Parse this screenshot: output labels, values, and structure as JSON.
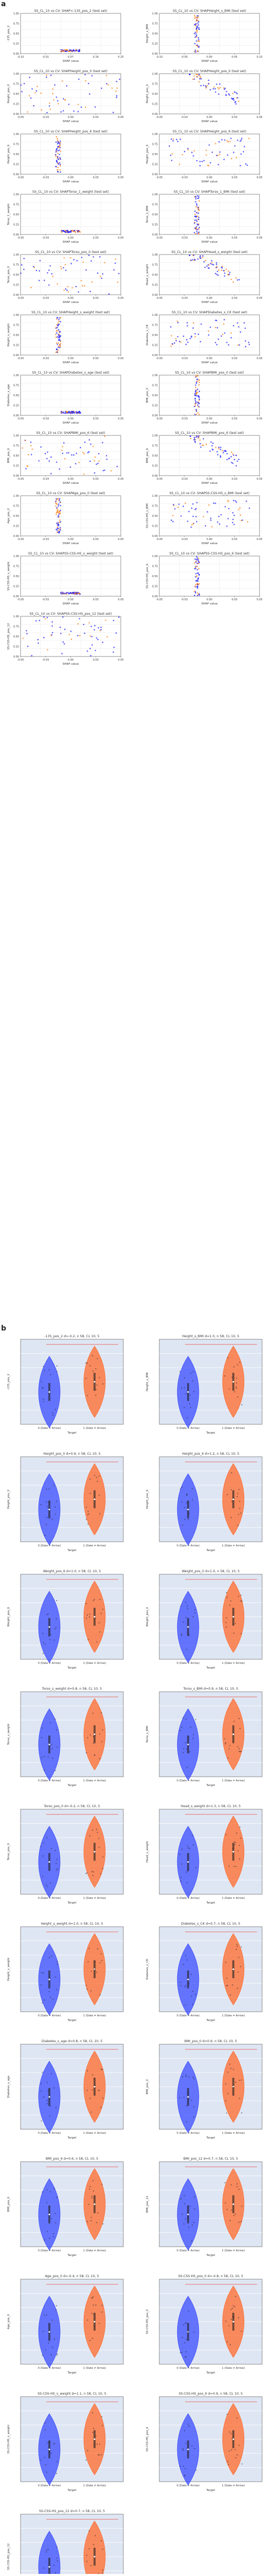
{
  "figure": {
    "panel_a_label": "a",
    "panel_b_label": "b"
  },
  "colors": {
    "dead_point": "#1f1fff",
    "alive_point": "#ff7f0e",
    "violin_blue": "#3b4cff",
    "violin_orange": "#ff6a2b",
    "violin_bg": "#dfe6f3",
    "sig_line": "#e8453c",
    "grid": "#e6e6e6"
  },
  "chart_data": [
    {
      "panel": "a",
      "type": "scatter",
      "grid": true,
      "title_template": "SS_CL_10 vs CV: SHAP<feature> (test set)",
      "xlabel": "SHAP value",
      "subplots": [
        {
          "title": "SS_CL_10 vs CV: SHAP<-135_pos_2 (test set)",
          "ylabel": "-135_pos_2",
          "xlim": [
            -0.1,
            0.25
          ],
          "ylim": [
            0,
            1
          ]
        },
        {
          "title": "SS_CL_10 vs CV: SHAPHeight_s_BMI (test set)",
          "ylabel": "Height_s_BMI",
          "xlim": [
            -0.1,
            0.1
          ],
          "ylim": [
            0,
            1
          ]
        },
        {
          "title": "SS_CL_10 vs CV: SHAPHeight_pos_0 (test set)",
          "ylabel": "Height_pos_0",
          "xlim": [
            -0.05,
            0.05
          ],
          "ylim": [
            0,
            1
          ]
        },
        {
          "title": "SS_CL_10 vs CV: SHAPHeight_pos_0 (test set)",
          "ylabel": "Height_pos_0",
          "xlim": [
            -0.05,
            0.05
          ],
          "ylim": [
            0,
            1
          ]
        },
        {
          "title": "SS_CL_10 vs CV: SHAPHeight_pos_6 (test set)",
          "ylabel": "Height_pos_6",
          "xlim": [
            -0.05,
            0.05
          ],
          "ylim": [
            0,
            1
          ]
        },
        {
          "title": "SS_CL_10 vs CV: SHAPHeight_pos_6 (test set)",
          "ylabel": "Height_pos_6",
          "xlim": [
            -0.05,
            0.05
          ],
          "ylim": [
            0,
            1
          ]
        },
        {
          "title": "SS_CL_10 vs CV: SHAPTorso_1_weight (test set)",
          "ylabel": "Torso_1_weight",
          "xlim": [
            -0.05,
            0.05
          ],
          "ylim": [
            0,
            1
          ]
        },
        {
          "title": "SS_CL_10 vs CV: SHAPTorso_1_BMI (test set)",
          "ylabel": "Torso_1_BMI",
          "xlim": [
            -0.05,
            0.05
          ],
          "ylim": [
            0,
            1
          ]
        },
        {
          "title": "SS_CL_10 vs CV: SHAPTorso_pos_0 (test set)",
          "ylabel": "Torso_pos_0",
          "xlim": [
            -0.05,
            0.05
          ],
          "ylim": [
            0,
            1
          ]
        },
        {
          "title": "SS_CL_10 vs CV: SHAPHead_s_weight (test set)",
          "ylabel": "Head_s_weight",
          "xlim": [
            -0.05,
            0.05
          ],
          "ylim": [
            0,
            1
          ]
        },
        {
          "title": "SS_CL_10 vs CV: SHAPHeight_s_weight (test set)",
          "ylabel": "Height_s_weight",
          "xlim": [
            -0.05,
            0.05
          ],
          "ylim": [
            0,
            1
          ]
        },
        {
          "title": "SS_CL_10 vs CV: SHAPDiabetes_s_CK (test set)",
          "ylabel": "Diabetes_s_CK",
          "xlim": [
            -0.05,
            0.05
          ],
          "ylim": [
            0,
            1
          ]
        },
        {
          "title": "SS_CL_10 vs CV: SHAPDiabetes_s_age (test set)",
          "ylabel": "Diabetes_s_age",
          "xlim": [
            -0.05,
            0.05
          ],
          "ylim": [
            0,
            1
          ]
        },
        {
          "title": "SS_CL_10 vs CV: SHAPBMI_pos_0 (test set)",
          "ylabel": "BMI_pos_0",
          "xlim": [
            -0.05,
            0.05
          ],
          "ylim": [
            0,
            1
          ]
        },
        {
          "title": "SS_CL_10 vs CV: SHAPBMI_pos_6 (test set)",
          "ylabel": "BMI_pos_6",
          "xlim": [
            -0.05,
            0.05
          ],
          "ylim": [
            0,
            1
          ]
        },
        {
          "title": "SS_CL_10 vs CV: SHAPBMI_pos_6 (test set)",
          "ylabel": "BMI_pos_6",
          "xlim": [
            -0.05,
            0.05
          ],
          "ylim": [
            0,
            1
          ]
        },
        {
          "title": "SS_CL_10 vs CV: SHAPAge_pos_0 (test set)",
          "ylabel": "Age_pos_0",
          "xlim": [
            -0.05,
            0.05
          ],
          "ylim": [
            0,
            1
          ]
        },
        {
          "title": "SS_CL_10 vs CV: SHAPSS-CSS-HS_s_BMI (test set)",
          "ylabel": "SS-CSS-HS_s_BMI",
          "xlim": [
            -0.05,
            0.05
          ],
          "ylim": [
            0,
            1
          ]
        },
        {
          "title": "SS_CL_10 vs CV: SHAPSS-CSS-HS_s_weight (test set)",
          "ylabel": "SS-CSS-HS_s_weight",
          "xlim": [
            -0.05,
            0.05
          ],
          "ylim": [
            0,
            1
          ]
        },
        {
          "title": "SS_CL_10 vs CV: SHAPSS-CSS-HS_pos_6 (test set)",
          "ylabel": "SS-CSS-HS_pos_6",
          "xlim": [
            -0.05,
            0.05
          ],
          "ylim": [
            0,
            1
          ]
        },
        {
          "title": "SS_CL_10 vs CV: SHAPSS-CSS-HS_pos_12 (test set)",
          "ylabel": "SS-CSS-HS_pos_12",
          "xlim": [
            -0.05,
            0.05
          ],
          "ylim": [
            0,
            1
          ]
        }
      ]
    },
    {
      "panel": "b",
      "type": "violin",
      "grid": true,
      "xlabel": "Target",
      "categories": [
        "0 (Date ≠ Arrive)",
        "1 (Date ≠ Arrive)"
      ],
      "subplots": [
        {
          "title": "-135_pos_2 d=-0.2, n 58, CL 10, 5",
          "ylabel": "-135_pos_2"
        },
        {
          "title": "Height_s_BMI d=1.0, n 58, CL 10, 5",
          "ylabel": "Height_s_BMI"
        },
        {
          "title": "Height_pos_0 d=0.9, n 58, CL 10, 5",
          "ylabel": "Height_pos_0"
        },
        {
          "title": "Height_pos_6 d=1.2, n 58, CL 10, 5",
          "ylabel": "Height_pos_6"
        },
        {
          "title": "Weight_pos_6 d=1.0, n 58, CL 10, 5",
          "ylabel": "Weight_pos_6"
        },
        {
          "title": "Weight_pos_0 d=1.0, n 58, CL 10, 5",
          "ylabel": "Weight_pos_0"
        },
        {
          "title": "Torso_s_weight d=0.8, n 58, CL 10, 5",
          "ylabel": "Torso_s_weight"
        },
        {
          "title": "Torso_s_BMI d=0.9, n 58, CL 10, 5",
          "ylabel": "Torso_s_BMI"
        },
        {
          "title": "Torso_pos_0 d=-0.2, n 58, CL 10, 5",
          "ylabel": "Torso_pos_0"
        },
        {
          "title": "Head_s_weight d=1.3, n 58, CL 10, 5",
          "ylabel": "Head_s_weight"
        },
        {
          "title": "Height_s_weight d=1.0, n 58, CL 10, 5",
          "ylabel": "Height_s_weight"
        },
        {
          "title": "Diabetes_s_CK d=0.7, n 58, CL 10, 5",
          "ylabel": "Diabetes_s_CK"
        },
        {
          "title": "Diabetes_s_age d=0.8, n 58, CL 10, 5",
          "ylabel": "Diabetes_s_age"
        },
        {
          "title": "BMI_pos_0 d=0.9, n 58, CL 10, 5",
          "ylabel": "BMI_pos_0"
        },
        {
          "title": "BMI_pos_6 d=0.6, n 58, CL 10, 5",
          "ylabel": "BMI_pos_6"
        },
        {
          "title": "BMI_pos_12 d=0.7, n 58, CL 10, 5",
          "ylabel": "BMI_pos_12"
        },
        {
          "title": "Age_pos_0 d=-0.4, n 58, CL 10, 5",
          "ylabel": "Age_pos_0"
        },
        {
          "title": "SS-CSS-HS_pos_0 d=-0.8, n 58, CL 10, 5",
          "ylabel": "SS-CSS-HS_pos_0"
        },
        {
          "title": "SS-CSS-HS_s_weight d=1.1, n 58, CL 10, 5",
          "ylabel": "SS-CSS-HS_s_weight"
        },
        {
          "title": "SS-CSS-HS_pos_6 d=0.9, n 58, CL 10, 5",
          "ylabel": "SS-CSS-HS_pos_6"
        },
        {
          "title": "SS-CSS-HS_pos_12 d=0.7, n 58, CL 10, 5",
          "ylabel": "SS-CSS-HS_pos_12"
        }
      ]
    }
  ]
}
